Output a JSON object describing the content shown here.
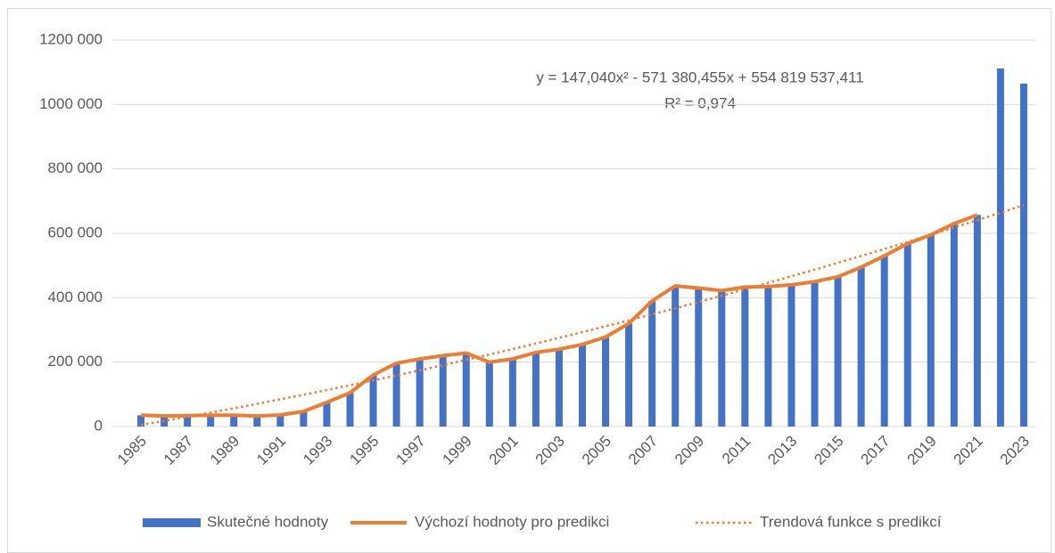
{
  "chart_data": {
    "type": "combo",
    "categories": [
      "1985",
      null,
      "1987",
      null,
      "1989",
      null,
      "1991",
      null,
      "1993",
      null,
      "1995",
      null,
      "1997",
      null,
      "1999",
      null,
      "2001",
      null,
      "2003",
      null,
      "2005",
      null,
      "2007",
      null,
      "2009",
      null,
      "2011",
      null,
      "2013",
      null,
      "2015",
      null,
      "2017",
      null,
      "2019",
      null,
      "2021",
      null,
      "2023"
    ],
    "series": [
      {
        "name": "Skutečné hodnoty",
        "type": "bar",
        "color": "#4472c4",
        "values": [
          35000,
          33000,
          34000,
          35000,
          35000,
          33000,
          36000,
          47000,
          75000,
          105000,
          160000,
          197000,
          210000,
          220000,
          228000,
          200000,
          210000,
          230000,
          240000,
          255000,
          278000,
          320000,
          390000,
          437000,
          430000,
          422000,
          433000,
          435000,
          440000,
          450000,
          465000,
          495000,
          530000,
          568000,
          595000,
          630000,
          657000,
          1112000,
          1065000
        ]
      },
      {
        "name": "Výchozí hodnoty pro predikci",
        "type": "line",
        "color": "#ed7d31",
        "values": [
          35000,
          33000,
          34000,
          35000,
          35000,
          33000,
          36000,
          47000,
          75000,
          105000,
          160000,
          197000,
          210000,
          220000,
          228000,
          200000,
          210000,
          230000,
          240000,
          255000,
          278000,
          320000,
          390000,
          437000,
          430000,
          422000,
          433000,
          435000,
          440000,
          450000,
          465000,
          495000,
          530000,
          568000,
          595000,
          630000,
          657000,
          null,
          null
        ]
      },
      {
        "name": "Trendová funkce s predikcí",
        "type": "dotted",
        "color": "#ed7d31",
        "values": [
          5000,
          17500,
          30300,
          43400,
          56800,
          70500,
          84500,
          98800,
          113400,
          128200,
          143400,
          158800,
          174600,
          190600,
          207000,
          223600,
          240500,
          257800,
          275300,
          293100,
          311200,
          329600,
          348300,
          367200,
          386500,
          406100,
          426000,
          446100,
          466600,
          487300,
          508400,
          529700,
          551300,
          573300,
          595500,
          618000,
          640800,
          663900,
          687300
        ]
      }
    ],
    "annotations": [
      "y = 147,040x² - 571 380,455x + 554 819 537,411",
      "R² = 0,974"
    ],
    "ylim": [
      0,
      1200000
    ],
    "yticks": [
      0,
      {
        "value": 200000,
        "label": "200 000"
      },
      {
        "value": 400000,
        "label": "400 000"
      },
      {
        "value": 600000,
        "label": "600 000"
      },
      {
        "value": 800000,
        "label": "800 000"
      },
      {
        "value": 1000000,
        "label": "1000 000"
      },
      {
        "value": 1200000,
        "label": "1200 000"
      }
    ],
    "grid": true,
    "legend": "bottom"
  }
}
